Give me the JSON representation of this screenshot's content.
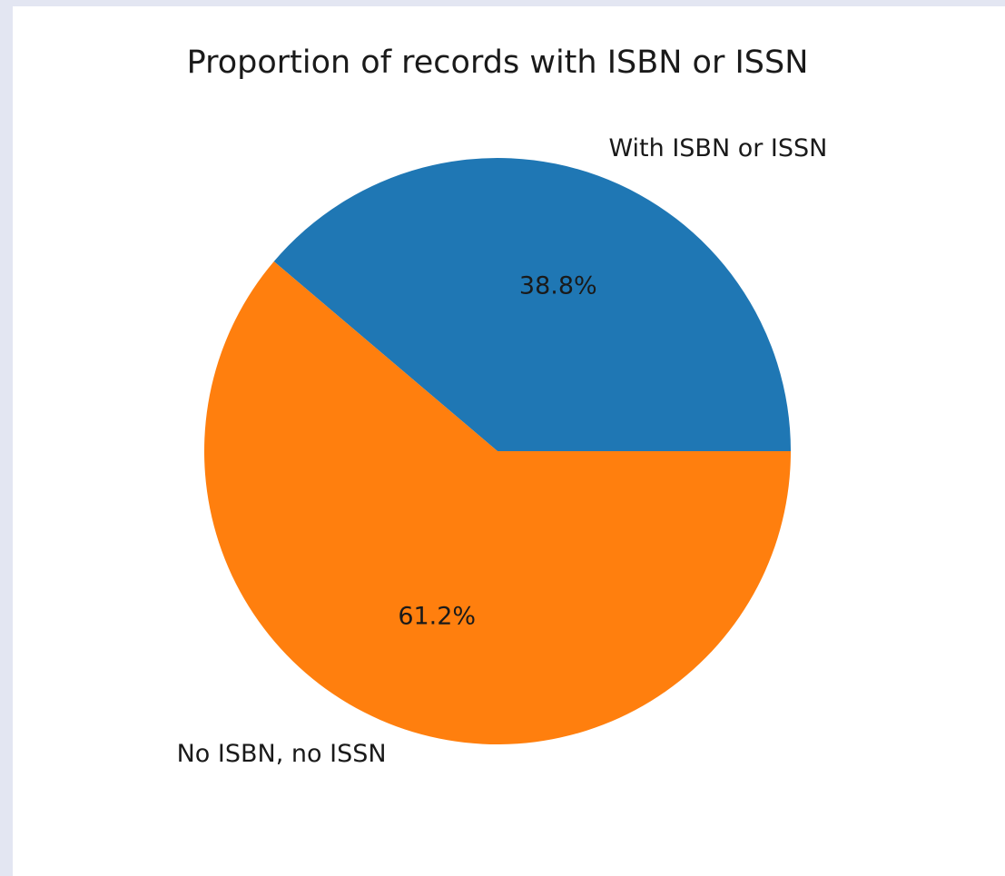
{
  "chart_data": {
    "type": "pie",
    "title": "Proportion of records with ISBN or ISSN",
    "start_angle_deg": 0,
    "direction": "counterclockwise",
    "slices": [
      {
        "label": "With ISBN or ISSN",
        "value": 38.8,
        "pct_label": "38.8%",
        "color": "#1f77b4"
      },
      {
        "label": "No ISBN, no ISSN",
        "value": 61.2,
        "pct_label": "61.2%",
        "color": "#ff7f0e"
      }
    ]
  }
}
